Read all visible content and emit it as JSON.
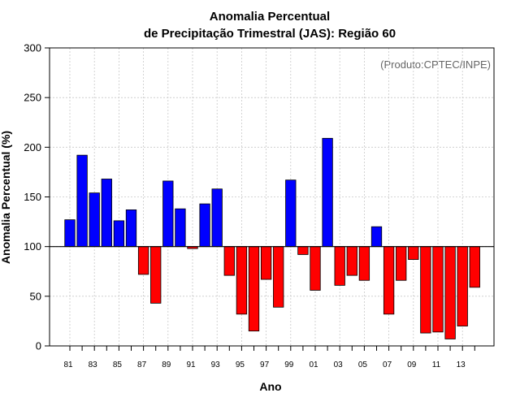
{
  "chart_data": {
    "type": "bar",
    "title": "Anomalia Percentual",
    "subtitle": "de Precipitação Trimestral (JAS): Região 60",
    "xlabel": "Ano",
    "ylabel": "Anomalia Percentual (%)",
    "annotation": "(Produto:CPTEC/INPE)",
    "baseline": 100,
    "ylim": [
      0,
      300
    ],
    "yticks": [
      0,
      50,
      100,
      150,
      200,
      250,
      300
    ],
    "grid": true,
    "colors": {
      "above": "#0000ff",
      "below": "#ff0000"
    },
    "categories": [
      "81",
      "82",
      "83",
      "84",
      "85",
      "86",
      "87",
      "88",
      "89",
      "90",
      "91",
      "92",
      "93",
      "94",
      "95",
      "96",
      "97",
      "98",
      "99",
      "00",
      "01",
      "02",
      "03",
      "04",
      "05",
      "06",
      "07",
      "08",
      "09",
      "10",
      "11",
      "12",
      "13",
      "14"
    ],
    "xtick_labels": [
      "81",
      "83",
      "85",
      "87",
      "89",
      "91",
      "93",
      "95",
      "97",
      "99",
      "01",
      "03",
      "05",
      "07",
      "09",
      "11",
      "13"
    ],
    "values": [
      127,
      192,
      154,
      168,
      126,
      137,
      72,
      43,
      166,
      138,
      98,
      143,
      158,
      71,
      32,
      15,
      67,
      39,
      167,
      92,
      56,
      209,
      61,
      71,
      66,
      120,
      32,
      66,
      87,
      13,
      14,
      7,
      20,
      59
    ]
  }
}
